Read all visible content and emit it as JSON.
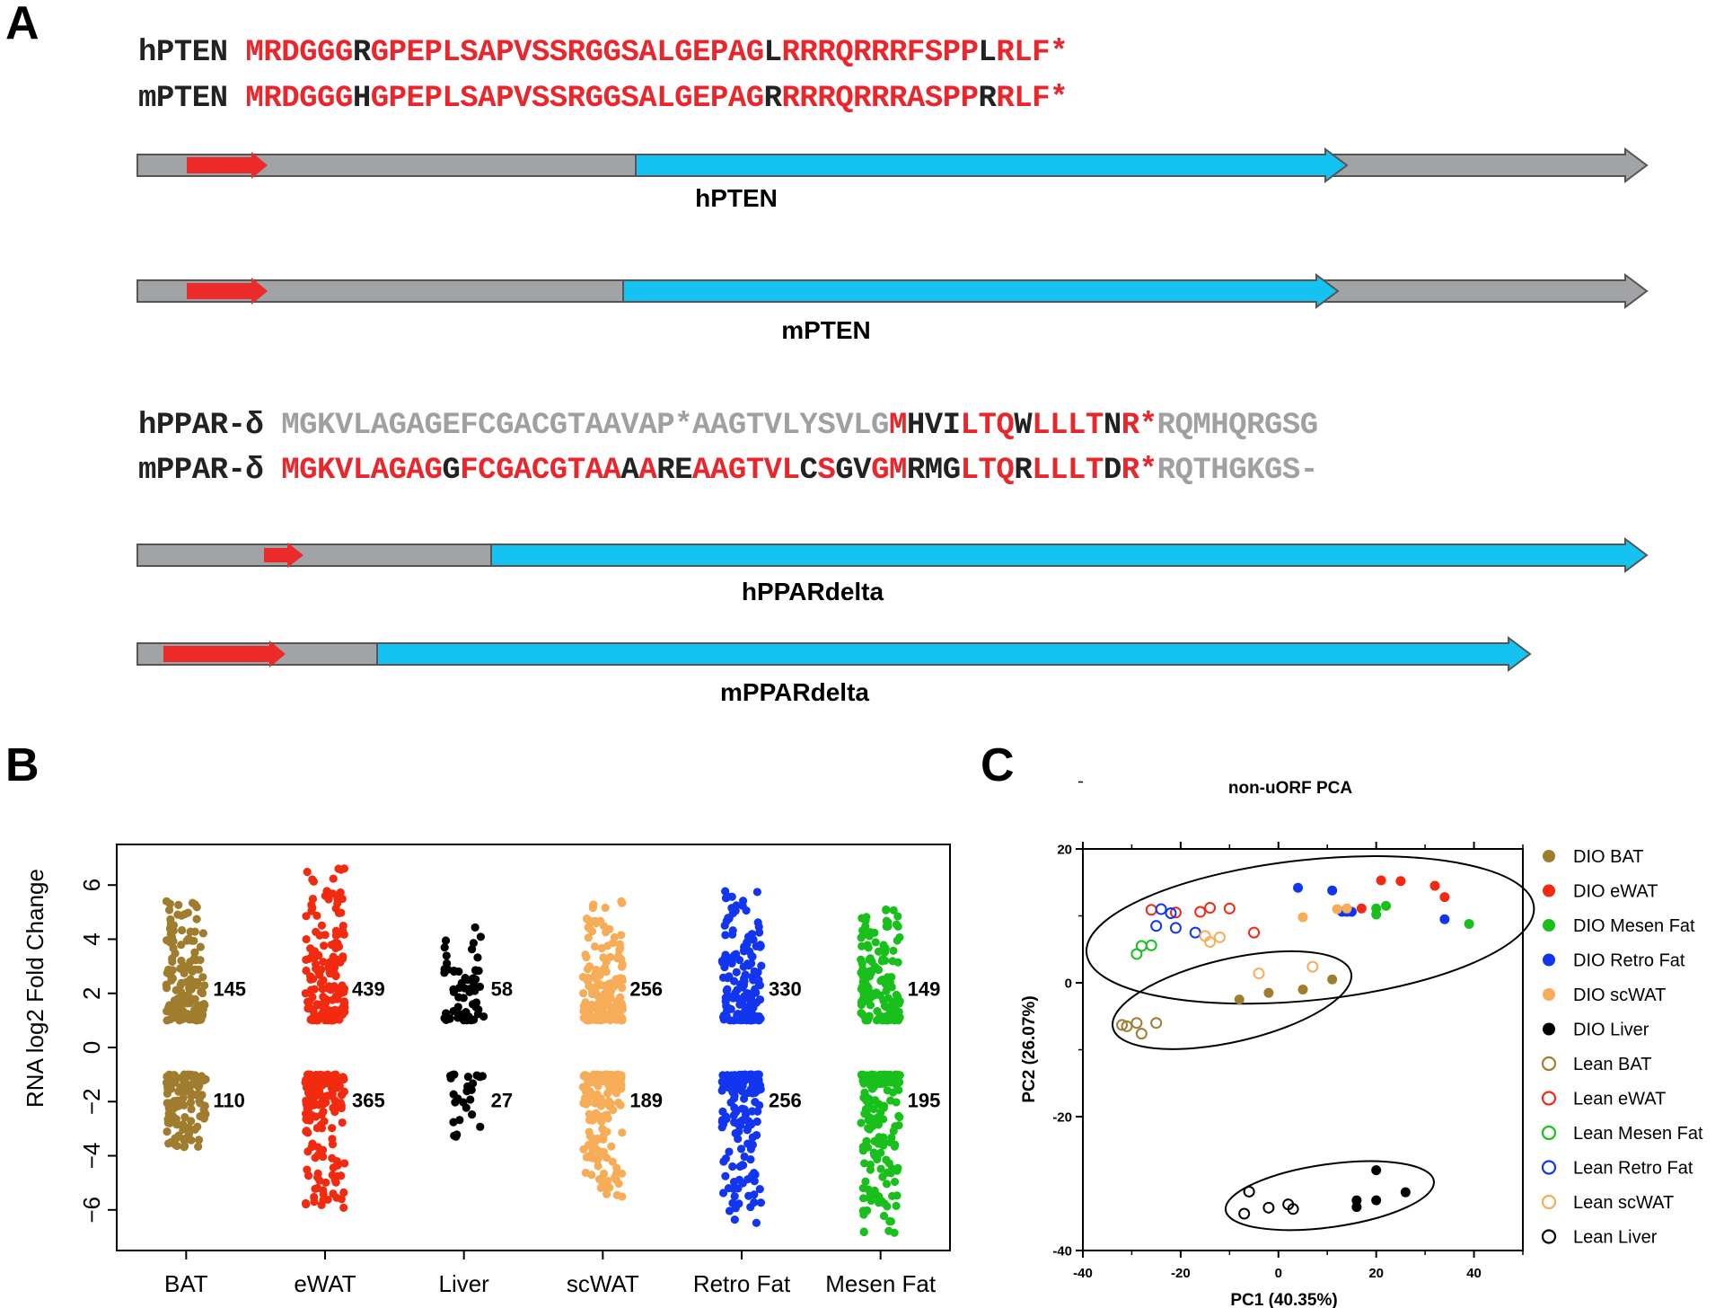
{
  "panels": {
    "a": "A",
    "b": "B",
    "c": "C"
  },
  "colors": {
    "red": "#e8262b",
    "gray": "#a0a0a0",
    "black": "#222222",
    "bar_gray": "#a1a3a6",
    "cyan": "#14c3f2",
    "uorf": "#ec2a2a"
  },
  "sequences": {
    "pten": [
      {
        "name": "hPTEN ",
        "segments": [
          {
            "t": "MRDGGG",
            "c": "red"
          },
          {
            "t": "R",
            "c": "black"
          },
          {
            "t": "GPEPLSAPVSSRGGSALGEPAG",
            "c": "red"
          },
          {
            "t": "L",
            "c": "black"
          },
          {
            "t": "RRRQRRRFSPP",
            "c": "red"
          },
          {
            "t": "L",
            "c": "black"
          },
          {
            "t": "RLF*",
            "c": "red"
          }
        ]
      },
      {
        "name": "mPTEN ",
        "segments": [
          {
            "t": "MRDGGG",
            "c": "red"
          },
          {
            "t": "H",
            "c": "black"
          },
          {
            "t": "GPEPLSAPVSSRGGSALGEPAG",
            "c": "red"
          },
          {
            "t": "R",
            "c": "black"
          },
          {
            "t": "RRRQRRRASPP",
            "c": "red"
          },
          {
            "t": "R",
            "c": "black"
          },
          {
            "t": "RLF*",
            "c": "red"
          }
        ]
      }
    ],
    "ppar": [
      {
        "name": "hPPAR-δ ",
        "segments": [
          {
            "t": "MGKVLAGAGEFCGACGTAAVAP*AAGTVLYSVLG",
            "c": "gray"
          },
          {
            "t": "M",
            "c": "red"
          },
          {
            "t": "HVI",
            "c": "black"
          },
          {
            "t": "LTQ",
            "c": "red"
          },
          {
            "t": "W",
            "c": "black"
          },
          {
            "t": "LLLT",
            "c": "red"
          },
          {
            "t": "N",
            "c": "black"
          },
          {
            "t": "R*",
            "c": "red"
          },
          {
            "t": "RQMHQRGSG",
            "c": "gray"
          }
        ]
      },
      {
        "name": "mPPAR-δ ",
        "segments": [
          {
            "t": "MGKVLAGAG",
            "c": "red"
          },
          {
            "t": "G",
            "c": "black"
          },
          {
            "t": "FCGACGTAA",
            "c": "red"
          },
          {
            "t": "A",
            "c": "black"
          },
          {
            "t": "A",
            "c": "red"
          },
          {
            "t": "RE",
            "c": "black"
          },
          {
            "t": "AAGTVL",
            "c": "red"
          },
          {
            "t": "C",
            "c": "black"
          },
          {
            "t": "S",
            "c": "red"
          },
          {
            "t": "GV",
            "c": "black"
          },
          {
            "t": "GM",
            "c": "red"
          },
          {
            "t": "RMG",
            "c": "black"
          },
          {
            "t": "LTQ",
            "c": "red"
          },
          {
            "t": "R",
            "c": "black"
          },
          {
            "t": "LLLT",
            "c": "red"
          },
          {
            "t": "D",
            "c": "black"
          },
          {
            "t": "R*",
            "c": "red"
          },
          {
            "t": "RQTHGKGS-",
            "c": "gray"
          }
        ]
      }
    ]
  },
  "gene_diagrams": [
    {
      "label": "hPTEN"
    },
    {
      "label": "mPTEN"
    },
    {
      "label": "hPPARdelta"
    },
    {
      "label": "mPPARdelta"
    }
  ],
  "chart_data": [
    {
      "type": "scatter",
      "title": "",
      "xlabel": "",
      "ylabel": "RNA log2 Fold Change",
      "ylim": [
        -7.5,
        7.5
      ],
      "yticks": [
        "6",
        "4",
        "2",
        "0",
        "−2",
        "−4",
        "−6"
      ],
      "categories": [
        "BAT",
        "eWAT",
        "Liver",
        "scWAT",
        "Retro Fat",
        "Mesen Fat"
      ],
      "series": [
        {
          "color": "#a07c2e",
          "up_count": "145",
          "down_count": "110",
          "up_max": 5.4,
          "down_min": -3.7
        },
        {
          "color": "#f22a10",
          "up_count": "439",
          "down_count": "365",
          "up_max": 6.8,
          "down_min": -6.0
        },
        {
          "color": "#000000",
          "up_count": "58",
          "down_count": "27",
          "up_max": 4.5,
          "down_min": -3.4
        },
        {
          "color": "#f7ad57",
          "up_count": "256",
          "down_count": "189",
          "up_max": 5.4,
          "down_min": -5.8
        },
        {
          "color": "#1236f0",
          "up_count": "330",
          "down_count": "256",
          "up_max": 5.8,
          "down_min": -6.5
        },
        {
          "color": "#19c01c",
          "up_count": "149",
          "down_count": "195",
          "up_max": 5.3,
          "down_min": -6.9
        }
      ]
    },
    {
      "type": "scatter",
      "title": "non-uORF PCA",
      "xlabel": "PC1 (40.35%)",
      "ylabel": "PC2 (26.07%)",
      "xlim": [
        -40,
        50
      ],
      "ylim": [
        -40,
        20
      ],
      "xticks": [
        "-40",
        "-20",
        "0",
        "20",
        "40"
      ],
      "yticks": [
        "20",
        "0",
        "-20",
        "-40"
      ],
      "series": [
        {
          "name": "DIO BAT",
          "color": "#a07c2e",
          "filled": true,
          "points": [
            [
              -8,
              -2.5
            ],
            [
              -2,
              -1.5
            ],
            [
              5,
              -1
            ],
            [
              11,
              0.5
            ]
          ]
        },
        {
          "name": "DIO eWAT",
          "color": "#f22a10",
          "filled": true,
          "points": [
            [
              21,
              15.3
            ],
            [
              25,
              15.2
            ],
            [
              32,
              14.5
            ],
            [
              34,
              12.8
            ],
            [
              17,
              11.1
            ]
          ]
        },
        {
          "name": "DIO Mesen Fat",
          "color": "#19c01c",
          "filled": true,
          "points": [
            [
              20,
              11.1
            ],
            [
              22,
              11.5
            ],
            [
              20,
              10.2
            ],
            [
              39,
              8.8
            ]
          ]
        },
        {
          "name": "DIO Retro Fat",
          "color": "#1236f0",
          "filled": true,
          "points": [
            [
              4,
              14.2
            ],
            [
              11,
              13.8
            ],
            [
              13,
              10.6
            ],
            [
              14,
              10.6
            ],
            [
              15,
              10.6
            ],
            [
              34,
              9.5
            ]
          ]
        },
        {
          "name": "DIO scWAT",
          "color": "#f7ad57",
          "filled": true,
          "points": [
            [
              5,
              9.8
            ],
            [
              12,
              11.0
            ],
            [
              14,
              11.1
            ]
          ]
        },
        {
          "name": "DIO Liver",
          "color": "#000000",
          "filled": true,
          "points": [
            [
              20,
              -28
            ],
            [
              16,
              -32.5
            ],
            [
              20,
              -32.5
            ],
            [
              26,
              -31.3
            ],
            [
              16,
              -33.5
            ]
          ]
        },
        {
          "name": "Lean BAT",
          "color": "#a07c2e",
          "filled": false,
          "points": [
            [
              -32,
              -6.3
            ],
            [
              -31,
              -6.5
            ],
            [
              -29,
              -6.0
            ],
            [
              -28,
              -7.6
            ],
            [
              -25,
              -6.0
            ]
          ]
        },
        {
          "name": "Lean eWAT",
          "color": "#f22a10",
          "filled": false,
          "points": [
            [
              -26,
              10.9
            ],
            [
              -21,
              10.5
            ],
            [
              -16,
              10.6
            ],
            [
              -14,
              11.2
            ],
            [
              -10,
              11.1
            ],
            [
              -5,
              7.5
            ]
          ]
        },
        {
          "name": "Lean Mesen Fat",
          "color": "#19c01c",
          "filled": false,
          "points": [
            [
              -28,
              5.5
            ],
            [
              -26,
              5.6
            ],
            [
              -29,
              4.3
            ]
          ]
        },
        {
          "name": "Lean Retro Fat",
          "color": "#1236f0",
          "filled": false,
          "points": [
            [
              -24,
              11.0
            ],
            [
              -22,
              10.4
            ],
            [
              -25,
              8.5
            ],
            [
              -21,
              8.2
            ],
            [
              -17,
              7.5
            ]
          ]
        },
        {
          "name": "Lean scWAT",
          "color": "#f7ad57",
          "filled": false,
          "points": [
            [
              -14,
              6.1
            ],
            [
              -12,
              6.8
            ],
            [
              -15,
              7.0
            ],
            [
              -4,
              1.4
            ],
            [
              7,
              2.4
            ]
          ]
        },
        {
          "name": "Lean Liver",
          "color": "#000000",
          "filled": false,
          "points": [
            [
              -6,
              -31.2
            ],
            [
              -7,
              -34.5
            ],
            [
              -2,
              -33.6
            ],
            [
              2,
              -33.1
            ],
            [
              3,
              -33.8
            ]
          ]
        }
      ],
      "ellipses": [
        {
          "cx": 6.5,
          "cy": 7.9,
          "rx": 46,
          "ry": 10.5,
          "angle": -6
        },
        {
          "cx": -9.5,
          "cy": -2.6,
          "rx": 25,
          "ry": 6.2,
          "angle": -13
        },
        {
          "cx": 10.5,
          "cy": -31.8,
          "rx": 21.5,
          "ry": 4.7,
          "angle": -8
        }
      ]
    }
  ]
}
